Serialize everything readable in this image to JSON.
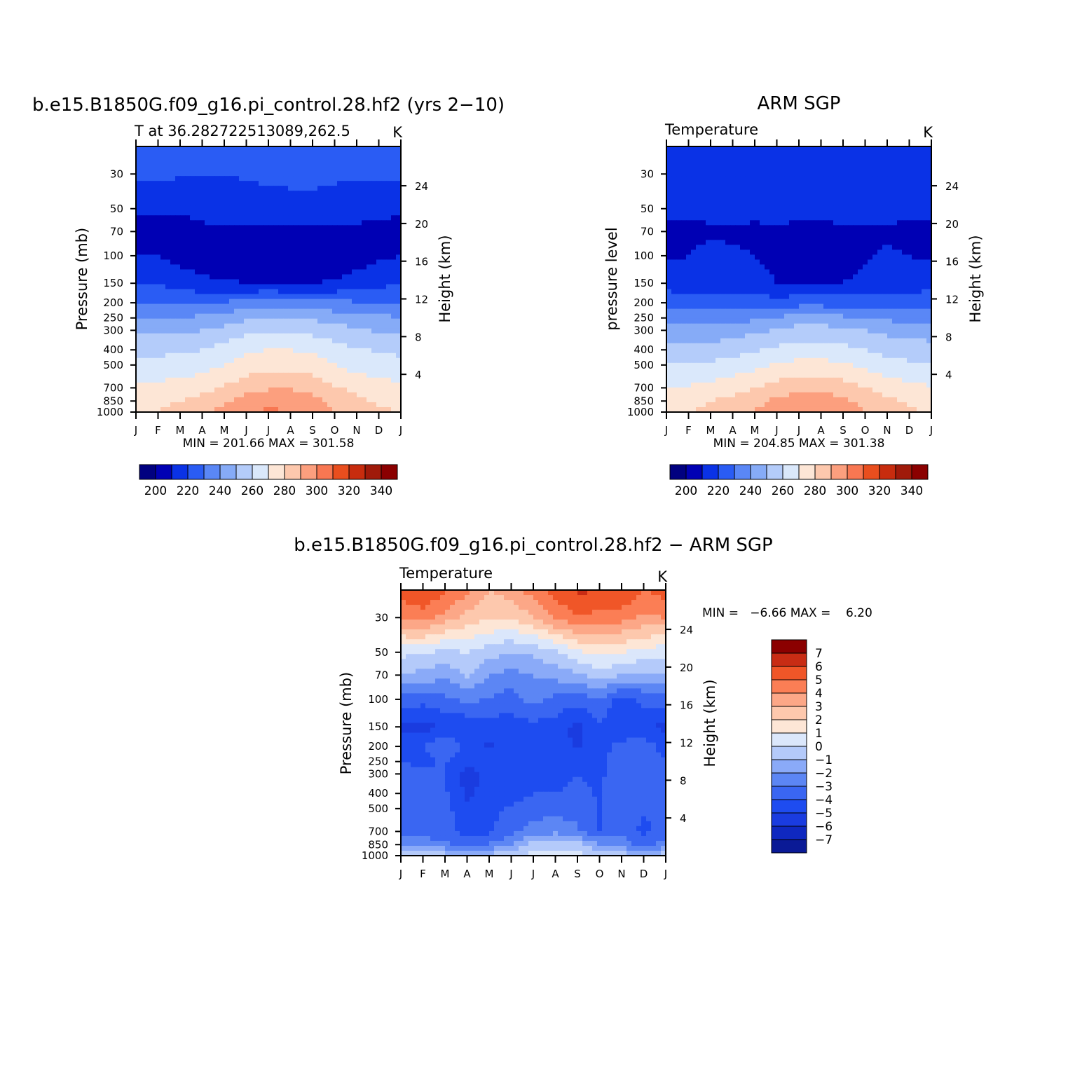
{
  "colors": {
    "abs_palette": [
      "#000080",
      "#0000b4",
      "#0a32e6",
      "#2a5cf4",
      "#5a87f6",
      "#86abf7",
      "#b4ccfa",
      "#dae8fb",
      "#fde6d6",
      "#fdc8ad",
      "#fc9f7e",
      "#f87752",
      "#e94e1e",
      "#c82c0e",
      "#a01a0a",
      "#8b0000"
    ],
    "diff_palette": [
      "#0a1a96",
      "#0f28c0",
      "#1a3ce0",
      "#1e4cf0",
      "#3a66f2",
      "#5c86f4",
      "#8aaaf8",
      "#b4cafa",
      "#dbe7fb",
      "#fde6d6",
      "#fdc8ad",
      "#fca787",
      "#fb7e55",
      "#f05628",
      "#c82c14",
      "#8b0000"
    ]
  },
  "months": [
    "J",
    "F",
    "M",
    "A",
    "M",
    "J",
    "J",
    "A",
    "S",
    "O",
    "N",
    "D",
    "J"
  ],
  "pressure_ticks": [
    "30",
    "50",
    "70",
    "100",
    "150",
    "200",
    "250",
    "300",
    "400",
    "500",
    "700",
    "850",
    "1000"
  ],
  "height_ticks": [
    "24",
    "20",
    "16",
    "12",
    "8",
    "4"
  ],
  "panels": [
    {
      "title": "b.e15.B1850G.f09_g16.pi_control.28.hf2 (yrs 2−10)",
      "subtitle_left": "T at 36.282722513089,262.5",
      "subtitle_right": "K",
      "ylabel": "Pressure (mb)",
      "ylabel_right": "Height (km)",
      "minmax": "MIN = 201.66 MAX = 301.58",
      "colorbar_labels": [
        "200",
        "220",
        "240",
        "260",
        "280",
        "300",
        "320",
        "340"
      ]
    },
    {
      "title": "ARM SGP",
      "subtitle_left": "Temperature",
      "subtitle_right": "K",
      "ylabel": "pressure level",
      "ylabel_right": "Height (km)",
      "minmax": "MIN = 204.85 MAX = 301.38",
      "colorbar_labels": [
        "200",
        "220",
        "240",
        "260",
        "280",
        "300",
        "320",
        "340"
      ]
    },
    {
      "title": "b.e15.B1850G.f09_g16.pi_control.28.hf2 − ARM SGP",
      "subtitle_left": "Temperature",
      "subtitle_right": "K",
      "ylabel": "Pressure (mb)",
      "ylabel_right": "Height (km)",
      "minmax": "MIN =   −6.66 MAX =    6.20",
      "colorbar_labels": [
        "7",
        "6",
        "5",
        "4",
        "3",
        "2",
        "1",
        "0",
        "−1",
        "−2",
        "−3",
        "−4",
        "−5",
        "−6",
        "−7"
      ]
    }
  ],
  "chart_data": [
    {
      "type": "heatmap",
      "title": "b.e15.B1850G.f09_g16.pi_control.28.hf2 (yrs 2−10)",
      "subtitle": "T at 36.282722513089,262.5",
      "units": "K",
      "xlabel": "",
      "ylabel": "Pressure (mb)",
      "ylabel_right": "Height (km)",
      "x": [
        "J",
        "F",
        "M",
        "A",
        "M",
        "J",
        "J",
        "A",
        "S",
        "O",
        "N",
        "D",
        "J"
      ],
      "y_pressure": [
        30,
        50,
        70,
        100,
        150,
        200,
        250,
        300,
        400,
        500,
        700,
        850,
        1000
      ],
      "ylim": [
        20,
        1000
      ],
      "y_log": true,
      "values": [
        [
          222,
          222,
          221,
          220,
          220,
          221,
          222,
          223,
          223,
          222,
          221,
          222,
          222
        ],
        [
          212,
          211,
          211,
          213,
          215,
          216,
          216,
          216,
          216,
          215,
          214,
          213,
          212
        ],
        [
          206,
          206,
          206,
          208,
          208,
          208,
          207,
          207,
          208,
          208,
          208,
          207,
          206
        ],
        [
          210,
          210,
          206,
          205,
          204,
          203,
          203,
          203,
          204,
          204,
          205,
          208,
          210
        ],
        [
          220,
          219,
          216,
          212,
          211,
          210,
          210,
          209,
          210,
          211,
          214,
          217,
          220
        ],
        [
          229,
          229,
          228,
          229,
          231,
          233,
          234,
          234,
          233,
          232,
          231,
          230,
          229
        ],
        [
          241,
          241,
          240,
          242,
          245,
          248,
          250,
          250,
          248,
          246,
          244,
          242,
          241
        ],
        [
          248,
          248,
          248,
          250,
          253,
          257,
          259,
          259,
          257,
          254,
          251,
          249,
          248
        ],
        [
          258,
          258,
          258,
          260,
          264,
          268,
          270,
          270,
          268,
          264,
          261,
          259,
          258
        ],
        [
          263,
          263,
          264,
          266,
          270,
          274,
          277,
          277,
          275,
          270,
          266,
          264,
          263
        ],
        [
          273,
          273,
          274,
          277,
          281,
          286,
          289,
          289,
          286,
          281,
          277,
          274,
          273
        ],
        [
          278,
          278,
          280,
          284,
          289,
          294,
          297,
          296,
          293,
          287,
          282,
          279,
          278
        ],
        [
          280,
          280,
          283,
          287,
          293,
          298,
          301.5,
          300,
          296,
          290,
          285,
          281,
          280
        ]
      ],
      "levels": [
        200,
        210,
        220,
        230,
        240,
        250,
        260,
        270,
        280,
        290,
        300,
        310,
        320,
        330,
        340
      ],
      "colorbar_labels": [
        "200",
        "220",
        "240",
        "260",
        "280",
        "300",
        "320",
        "340"
      ],
      "min": 201.66,
      "max": 301.58
    },
    {
      "type": "heatmap",
      "title": "ARM SGP",
      "subtitle": "Temperature",
      "units": "K",
      "xlabel": "",
      "ylabel": "pressure level",
      "ylabel_right": "Height (km)",
      "x": [
        "J",
        "F",
        "M",
        "A",
        "M",
        "J",
        "J",
        "A",
        "S",
        "O",
        "N",
        "D",
        "J"
      ],
      "y_pressure": [
        30,
        50,
        70,
        100,
        150,
        200,
        250,
        300,
        400,
        500,
        700,
        850,
        1000
      ],
      "ylim": [
        20,
        1000
      ],
      "y_log": true,
      "values": [
        [
          218,
          218,
          217,
          217,
          216,
          216,
          216,
          216,
          216,
          217,
          217,
          218,
          218
        ],
        [
          212,
          212,
          212,
          213,
          213,
          214,
          214,
          214,
          214,
          213,
          213,
          212,
          212
        ],
        [
          208,
          208,
          209,
          209,
          208,
          208,
          207,
          207,
          208,
          209,
          209,
          208,
          208
        ],
        [
          208,
          210,
          212,
          211,
          210,
          207,
          206,
          206,
          207,
          209,
          211,
          210,
          208
        ],
        [
          217,
          215,
          215,
          215,
          214,
          210,
          209,
          209,
          210,
          212,
          215,
          216,
          217
        ],
        [
          225,
          224,
          224,
          224,
          224,
          224,
          226,
          226,
          225,
          224,
          224,
          224,
          225
        ],
        [
          236,
          236,
          235,
          236,
          238,
          241,
          244,
          244,
          242,
          240,
          238,
          237,
          236
        ],
        [
          245,
          244,
          244,
          245,
          248,
          251,
          254,
          254,
          252,
          250,
          247,
          246,
          245
        ],
        [
          254,
          254,
          254,
          256,
          259,
          262,
          265,
          265,
          263,
          260,
          257,
          255,
          254
        ],
        [
          261,
          261,
          262,
          264,
          267,
          271,
          273,
          273,
          271,
          268,
          264,
          262,
          261
        ],
        [
          271,
          271,
          273,
          276,
          280,
          284,
          287,
          287,
          285,
          280,
          276,
          273,
          271
        ],
        [
          277,
          277,
          280,
          283,
          287,
          292,
          295,
          295,
          292,
          287,
          282,
          279,
          277
        ],
        [
          279,
          280,
          282,
          286,
          291,
          296,
          301,
          299,
          295,
          290,
          285,
          281,
          279
        ]
      ],
      "levels": [
        200,
        210,
        220,
        230,
        240,
        250,
        260,
        270,
        280,
        290,
        300,
        310,
        320,
        330,
        340
      ],
      "colorbar_labels": [
        "200",
        "220",
        "240",
        "260",
        "280",
        "300",
        "320",
        "340"
      ],
      "min": 204.85,
      "max": 301.38
    },
    {
      "type": "heatmap",
      "title": "b.e15.B1850G.f09_g16.pi_control.28.hf2 − ARM SGP",
      "subtitle": "Temperature",
      "units": "K",
      "xlabel": "",
      "ylabel": "Pressure (mb)",
      "ylabel_right": "Height (km)",
      "x": [
        "J",
        "F",
        "M",
        "A",
        "M",
        "J",
        "J",
        "A",
        "S",
        "O",
        "N",
        "D",
        "J"
      ],
      "y_pressure": [
        20,
        30,
        50,
        70,
        100,
        150,
        200,
        250,
        300,
        400,
        500,
        700,
        850,
        1000
      ],
      "ylim": [
        20,
        1000
      ],
      "y_log": true,
      "values": [
        [
          5.5,
          6.1,
          5.2,
          4.3,
          3.0,
          3.5,
          4.5,
          5.5,
          6.2,
          6.0,
          6.0,
          5.0,
          5.5
        ],
        [
          4.0,
          4.5,
          3.6,
          2.5,
          2.2,
          2.0,
          3.0,
          4.2,
          4.8,
          4.7,
          4.5,
          3.8,
          4.0
        ],
        [
          0.3,
          0.2,
          -0.3,
          0.1,
          -0.6,
          -1.0,
          -0.8,
          -0.2,
          0.8,
          1.2,
          1.0,
          0.6,
          0.3
        ],
        [
          -1.2,
          -1.3,
          -1.8,
          -0.8,
          -2.0,
          -2.3,
          -2.0,
          -1.6,
          -1.2,
          -0.4,
          -1.0,
          -1.3,
          -1.2
        ],
        [
          -3.3,
          -3.6,
          -3.2,
          -2.8,
          -3.0,
          -3.6,
          -2.5,
          -3.3,
          -3.6,
          -3.0,
          -4.5,
          -3.8,
          -3.3
        ],
        [
          -5.4,
          -5.4,
          -4.8,
          -4.8,
          -4.6,
          -4.4,
          -4.4,
          -4.4,
          -5.4,
          -4.2,
          -5.0,
          -4.6,
          -5.4
        ],
        [
          -4.4,
          -4.2,
          -2.8,
          -4.5,
          -5.2,
          -4.2,
          -4.0,
          -4.4,
          -5.2,
          -4.4,
          -3.6,
          -3.5,
          -4.4
        ],
        [
          -4.0,
          -4.2,
          -3.9,
          -4.6,
          -4.3,
          -4.3,
          -4.7,
          -4.3,
          -4.2,
          -4.4,
          -3.2,
          -3.2,
          -4.0
        ],
        [
          -3.8,
          -3.7,
          -4.0,
          -5.6,
          -4.4,
          -4.4,
          -4.3,
          -4.3,
          -4.0,
          -4.2,
          -3.4,
          -3.3,
          -3.8
        ],
        [
          -3.7,
          -3.5,
          -3.8,
          -5.2,
          -4.7,
          -4.3,
          -4.0,
          -4.0,
          -3.8,
          -4.1,
          -3.3,
          -3.5,
          -3.7
        ],
        [
          -3.6,
          -3.5,
          -3.7,
          -4.7,
          -4.3,
          -3.9,
          -3.5,
          -3.4,
          -3.4,
          -4.0,
          -3.3,
          -3.9,
          -3.6
        ],
        [
          -3.4,
          -3.4,
          -3.6,
          -4.4,
          -4.2,
          -3.3,
          -2.5,
          -2.3,
          -2.8,
          -4.2,
          -3.2,
          -4.3,
          -3.4
        ],
        [
          -2.5,
          -2.5,
          -2.7,
          -3.4,
          -3.0,
          -1.9,
          -0.6,
          -0.3,
          -0.5,
          -1.8,
          -2.3,
          -3.5,
          -2.5
        ],
        [
          -0.5,
          -0.5,
          -0.5,
          -0.6,
          -0.5,
          -0.3,
          0.4,
          0.6,
          0.3,
          -0.2,
          -0.5,
          -0.8,
          -0.5
        ]
      ],
      "levels": [
        -7,
        -6,
        -5,
        -4,
        -3,
        -2,
        -1,
        0,
        1,
        2,
        3,
        4,
        5,
        6,
        7
      ],
      "colorbar_labels": [
        "7",
        "6",
        "5",
        "4",
        "3",
        "2",
        "1",
        "0",
        "−1",
        "−2",
        "−3",
        "−4",
        "−5",
        "−6",
        "−7"
      ],
      "min": -6.66,
      "max": 6.2
    }
  ]
}
